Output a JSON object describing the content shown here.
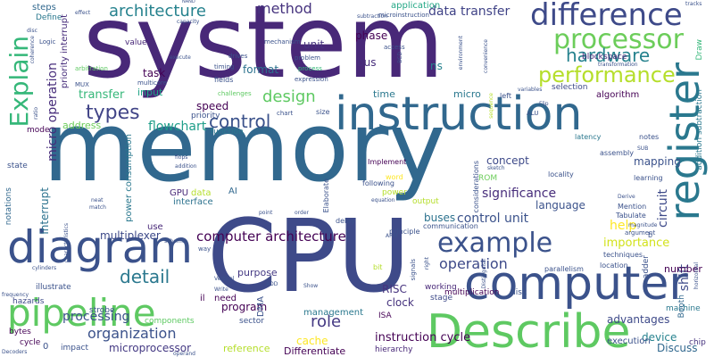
{
  "word_cloud": {
    "words": [
      {
        "text": "system",
        "color": "#482878"
      },
      {
        "text": "memory",
        "color": "#31688e"
      },
      {
        "text": "CPU",
        "color": "#3e4a89"
      },
      {
        "text": "instruction",
        "color": "#31688e"
      },
      {
        "text": "computer",
        "color": "#3b528b"
      },
      {
        "text": "Describe",
        "color": "#5ec962"
      },
      {
        "text": "diagram",
        "color": "#3b528b"
      },
      {
        "text": "register",
        "color": "#2a788e"
      },
      {
        "text": "pipeline",
        "color": "#5ec962"
      },
      {
        "text": "difference",
        "color": "#3e4a89"
      },
      {
        "text": "processor",
        "color": "#6ccd5a"
      },
      {
        "text": "example",
        "color": "#3b528b"
      },
      {
        "text": "Explain",
        "color": "#35b779"
      },
      {
        "text": "performance",
        "color": "#b5de2b"
      },
      {
        "text": "hardware",
        "color": "#26828e"
      },
      {
        "text": "architecture",
        "color": "#26828e"
      },
      {
        "text": "method",
        "color": "#46337e"
      },
      {
        "text": "data transfer",
        "color": "#404387"
      },
      {
        "text": "application",
        "color": "#22a785"
      },
      {
        "text": "types",
        "color": "#414487"
      },
      {
        "text": "control",
        "color": "#3b528b"
      },
      {
        "text": "design",
        "color": "#5ec962"
      },
      {
        "text": "flowchart",
        "color": "#1f9e89"
      },
      {
        "text": "computer architecture",
        "color": "#440154"
      },
      {
        "text": "operation",
        "color": "#3e4a89"
      },
      {
        "text": "detail",
        "color": "#2a788e"
      },
      {
        "text": "organization",
        "color": "#3b528b"
      },
      {
        "text": "role",
        "color": "#443983"
      },
      {
        "text": "concept",
        "color": "#3e4a89"
      },
      {
        "text": "significance",
        "color": "#472d7b"
      },
      {
        "text": "control unit",
        "color": "#3b528b"
      },
      {
        "text": "instruction cycle",
        "color": "#440154"
      },
      {
        "text": "help",
        "color": "#fde725"
      },
      {
        "text": "importance",
        "color": "#d2e21b"
      },
      {
        "text": "advantages",
        "color": "#3e4a89"
      },
      {
        "text": "device",
        "color": "#26828e"
      },
      {
        "text": "Discuss",
        "color": "#31688e"
      },
      {
        "text": "microprocessor",
        "color": "#443983"
      },
      {
        "text": "processing",
        "color": "#3b528b"
      },
      {
        "text": "multiplexer",
        "color": "#3e4a89"
      },
      {
        "text": "bus",
        "color": "#472d7b"
      },
      {
        "text": "phase",
        "color": "#440154"
      },
      {
        "text": "unit",
        "color": "#46337e"
      },
      {
        "text": "clock",
        "color": "#46337e"
      },
      {
        "text": "RISC",
        "color": "#46337e"
      },
      {
        "text": "cache",
        "color": "#fde725"
      },
      {
        "text": "Differentiate",
        "color": "#440154"
      },
      {
        "text": "management",
        "color": "#2a788e"
      },
      {
        "text": "language",
        "color": "#3b528b"
      },
      {
        "text": "buses",
        "color": "#2c728e"
      },
      {
        "text": "mapping",
        "color": "#3b528b"
      },
      {
        "text": "shift",
        "color": "#3e4a89"
      },
      {
        "text": "circuit",
        "color": "#3e4a89"
      },
      {
        "text": "number",
        "color": "#440154"
      },
      {
        "text": "interrupt",
        "color": "#2c728e"
      },
      {
        "text": "micro operation",
        "color": "#472d7b"
      },
      {
        "text": "transfer",
        "color": "#35b779"
      },
      {
        "text": "address",
        "color": "#6ccd5a"
      },
      {
        "text": "purpose",
        "color": "#443983"
      },
      {
        "text": "program",
        "color": "#440154"
      },
      {
        "text": "task",
        "color": "#440154"
      },
      {
        "text": "input",
        "color": "#20a486"
      },
      {
        "text": "speed",
        "color": "#440154"
      },
      {
        "text": "format",
        "color": "#2c728e"
      },
      {
        "text": "time",
        "color": "#2a788e"
      },
      {
        "text": "micro",
        "color": "#2a788e"
      },
      {
        "text": "ns",
        "color": "#26828e"
      },
      {
        "text": "reference",
        "color": "#b5de2b"
      },
      {
        "text": "execution",
        "color": "#3b528b"
      },
      {
        "text": "power consumption",
        "color": "#2a788e"
      },
      {
        "text": "GPU",
        "color": "#482878"
      },
      {
        "text": "data",
        "color": "#b5de2b"
      },
      {
        "text": "interface",
        "color": "#2c728e"
      },
      {
        "text": "AI",
        "color": "#31688e"
      },
      {
        "text": "ROM",
        "color": "#6ccd5a"
      },
      {
        "text": "output",
        "color": "#b5de2b"
      },
      {
        "text": "power",
        "color": "#b5de2b"
      },
      {
        "text": "word",
        "color": "#fde725"
      },
      {
        "text": "use",
        "color": "#482878"
      },
      {
        "text": "value",
        "color": "#482878"
      },
      {
        "text": "steps",
        "color": "#31688e"
      },
      {
        "text": "Define",
        "color": "#2a788e"
      },
      {
        "text": "priority interrupt",
        "color": "#472d7b"
      },
      {
        "text": "machine",
        "color": "#2a788e"
      },
      {
        "text": "chip",
        "color": "#46337e"
      },
      {
        "text": "algorithm",
        "color": "#440154"
      },
      {
        "text": "selection",
        "color": "#3e4a89"
      },
      {
        "text": "block",
        "color": "#482878"
      },
      {
        "text": "space",
        "color": "#482878"
      },
      {
        "text": "addition subtraction",
        "color": "#2a788e"
      },
      {
        "text": "Draw",
        "color": "#35b779"
      },
      {
        "text": "hazards",
        "color": "#3e4a89"
      },
      {
        "text": "bytes",
        "color": "#440154"
      },
      {
        "text": "cycle",
        "color": "#440154"
      },
      {
        "text": "multiplication",
        "color": "#440154"
      },
      {
        "text": "disk",
        "color": "#3b528b"
      },
      {
        "text": "hierarchy",
        "color": "#482878"
      },
      {
        "text": "Booth",
        "color": "#31688e"
      },
      {
        "text": "il",
        "color": "#440154"
      },
      {
        "text": "need",
        "color": "#440154"
      },
      {
        "text": "ISA",
        "color": "#440154"
      },
      {
        "text": "stage",
        "color": "#3e4a89"
      },
      {
        "text": "working",
        "color": "#482878"
      },
      {
        "text": "mode",
        "color": "#440154"
      },
      {
        "text": "state",
        "color": "#3b528b"
      },
      {
        "text": "notations",
        "color": "#31688e"
      },
      {
        "text": "function",
        "color": "#2a788e"
      },
      {
        "text": "priority",
        "color": "#3b528b"
      },
      {
        "text": "strobe",
        "color": "#3b528b"
      },
      {
        "text": "illustrate",
        "color": "#3b528b"
      },
      {
        "text": "components",
        "color": "#5ec962"
      },
      {
        "text": "impact",
        "color": "#3b528b"
      },
      {
        "text": "sector",
        "color": "#3b528b"
      },
      {
        "text": "Implement",
        "color": "#440154"
      },
      {
        "text": "following",
        "color": "#3b528b"
      },
      {
        "text": "Elaborate",
        "color": "#3b528b"
      },
      {
        "text": "principle",
        "color": "#3b528b"
      },
      {
        "text": "communication",
        "color": "#3b528b"
      },
      {
        "text": "considerations",
        "color": "#3b528b"
      },
      {
        "text": "parallelism",
        "color": "#3b528b"
      },
      {
        "text": "techniques",
        "color": "#3b528b"
      },
      {
        "text": "location",
        "color": "#3b528b"
      },
      {
        "text": "learning",
        "color": "#3b528b"
      },
      {
        "text": "Tabulate",
        "color": "#3b528b"
      },
      {
        "text": "argument",
        "color": "#3b528b"
      },
      {
        "text": "Mention",
        "color": "#3b528b"
      },
      {
        "text": "locality",
        "color": "#3b528b"
      },
      {
        "text": "assembly",
        "color": "#3b528b"
      },
      {
        "text": "notes",
        "color": "#3b528b"
      },
      {
        "text": "latency",
        "color": "#2a788e"
      },
      {
        "text": "mechanism",
        "color": "#3b528b"
      },
      {
        "text": "problem",
        "color": "#3b528b"
      },
      {
        "text": "expression",
        "color": "#3b528b"
      },
      {
        "text": "fields",
        "color": "#3b528b"
      },
      {
        "text": "timing",
        "color": "#3b528b"
      },
      {
        "text": "drives",
        "color": "#3b528b"
      },
      {
        "text": "multicore",
        "color": "#3b528b"
      },
      {
        "text": "execute",
        "color": "#3b528b"
      },
      {
        "text": "process",
        "color": "#35b779"
      },
      {
        "text": "access",
        "color": "#3b528b"
      },
      {
        "text": "challenges",
        "color": "#5ec962"
      },
      {
        "text": "chart",
        "color": "#3b528b"
      },
      {
        "text": "size",
        "color": "#3b528b"
      },
      {
        "text": "left",
        "color": "#3b528b"
      },
      {
        "text": "ALU",
        "color": "#3b528b"
      },
      {
        "text": "transformation",
        "color": "#3b528b"
      },
      {
        "text": "arbitration",
        "color": "#5ec962"
      },
      {
        "text": "MUX",
        "color": "#3b528b"
      },
      {
        "text": "effect",
        "color": "#3b528b"
      },
      {
        "text": "NAND",
        "color": "#3b528b"
      },
      {
        "text": "subtraction",
        "color": "#3b528b"
      },
      {
        "text": "microinstruction",
        "color": "#3b528b"
      },
      {
        "text": "capacity",
        "color": "#3b528b"
      },
      {
        "text": "tracks",
        "color": "#3b528b"
      },
      {
        "text": "Flip",
        "color": "#3b528b"
      },
      {
        "text": "Logic",
        "color": "#3b528b"
      },
      {
        "text": "coherence",
        "color": "#3b528b"
      },
      {
        "text": "ratio",
        "color": "#3b528b"
      },
      {
        "text": "disc",
        "color": "#3b528b"
      },
      {
        "text": "frequency",
        "color": "#3b528b"
      },
      {
        "text": "Decoders",
        "color": "#3b528b"
      },
      {
        "text": "cylinders",
        "color": "#3b528b"
      },
      {
        "text": "neat",
        "color": "#3b528b"
      },
      {
        "text": "match",
        "color": "#3b528b"
      },
      {
        "text": "flops",
        "color": "#3b528b"
      },
      {
        "text": "addition",
        "color": "#3b528b"
      },
      {
        "text": "scheme",
        "color": "#3b528b"
      },
      {
        "text": "way",
        "color": "#3b528b"
      },
      {
        "text": "point",
        "color": "#3b528b"
      },
      {
        "text": "order",
        "color": "#3b528b"
      },
      {
        "text": "delay",
        "color": "#3b528b"
      },
      {
        "text": "equation",
        "color": "#3b528b"
      },
      {
        "text": "ARM",
        "color": "#3b528b"
      },
      {
        "text": "magnitude",
        "color": "#3b528b"
      },
      {
        "text": "Derive",
        "color": "#3b528b"
      },
      {
        "text": "SUB",
        "color": "#3b528b"
      },
      {
        "text": "sketch",
        "color": "#3b528b"
      },
      {
        "text": "Vertical",
        "color": "#3b528b"
      },
      {
        "text": "Write",
        "color": "#3b528b"
      },
      {
        "text": "ADD",
        "color": "#3b528b"
      },
      {
        "text": "Show",
        "color": "#3b528b"
      },
      {
        "text": "operand",
        "color": "#3b528b"
      },
      {
        "text": "right",
        "color": "#3b528b"
      },
      {
        "text": "Distinguish",
        "color": "#3b528b"
      },
      {
        "text": "horizontal",
        "color": "#3b528b"
      },
      {
        "text": "variables",
        "color": "#3b528b"
      },
      {
        "text": "characteristics",
        "color": "#3b528b"
      },
      {
        "text": "environment",
        "color": "#3b528b"
      },
      {
        "text": "convenience",
        "color": "#3b528b"
      },
      {
        "text": "BCD",
        "color": "#3b528b"
      },
      {
        "text": "sequence",
        "color": "#b5de2b"
      },
      {
        "text": "adder",
        "color": "#3b528b"
      },
      {
        "text": "bit",
        "color": "#b5de2b"
      },
      {
        "text": "signals",
        "color": "#3b528b"
      },
      {
        "text": "DMA",
        "color": "#3b528b"
      },
      {
        "text": "0",
        "color": "#3b528b"
      },
      {
        "text": "b",
        "color": "#3b528b"
      }
    ]
  }
}
